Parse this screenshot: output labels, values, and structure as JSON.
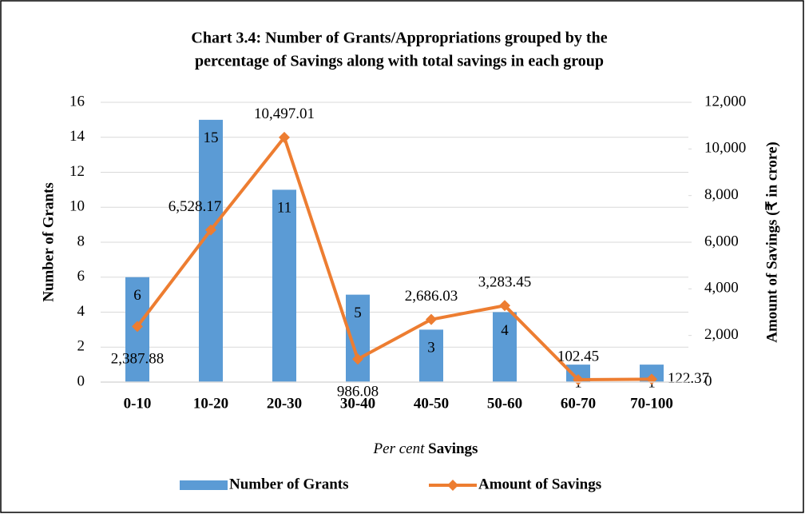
{
  "chart_data": {
    "type": "bar_line",
    "title": [
      "Chart 3.4: Number of Grants/Appropriations grouped by the",
      "percentage of Savings along with total savings in each group"
    ],
    "x_label": "Per cent Savings",
    "y_label": "Number of Grants",
    "y2_label": "Amount of Savings (₹ in crore)",
    "categories": [
      "0-10",
      "10-20",
      "20-30",
      "30-40",
      "40-50",
      "50-60",
      "60-70",
      "70-100"
    ],
    "series": [
      {
        "name": "Number of Grants",
        "type": "bar",
        "color": "#5b9bd5",
        "values": [
          6,
          15,
          11,
          5,
          3,
          4,
          1,
          1
        ]
      },
      {
        "name": "Amount of Savings",
        "type": "line",
        "axis": "y2",
        "color": "#ed7d31",
        "values": [
          2387.88,
          6528.17,
          10497.01,
          986.08,
          2686.03,
          3283.45,
          102.45,
          122.37
        ],
        "value_labels": [
          "2,387.88",
          "6,528.17",
          "10,497.01",
          "986.08",
          "2,686.03",
          "3,283.45",
          "102.45",
          "122.37"
        ]
      }
    ],
    "ylim": [
      0,
      16
    ],
    "yticks": [
      0,
      2,
      4,
      6,
      8,
      10,
      12,
      14,
      16
    ],
    "y2lim": [
      0,
      12000
    ],
    "y2ticks": [
      0,
      {
        "value": 2000,
        "label": "2,000"
      },
      {
        "value": 4000,
        "label": "4,000"
      },
      {
        "value": 6000,
        "label": "6,000"
      },
      {
        "value": 8000,
        "label": "8,000"
      },
      {
        "value": 10000,
        "label": "10,000"
      },
      {
        "value": 12000,
        "label": "12,000"
      }
    ],
    "grid": true,
    "legend": "bottom"
  }
}
